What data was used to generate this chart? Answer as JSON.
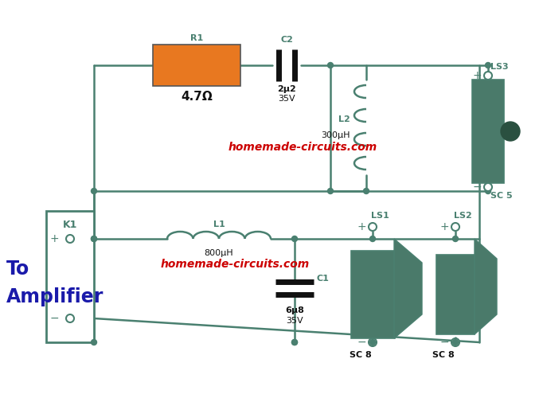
{
  "bg_color": "#ffffff",
  "line_color": "#4a8070",
  "line_width": 1.8,
  "text_color": "#4a8070",
  "red_color": "#cc0000",
  "resistor_color": "#e87820",
  "black_color": "#111111",
  "blue_color": "#1a1aaa",
  "label_font_size": 8.5,
  "small_font_size": 8,
  "watermark_font_size": 10,
  "to_amp_font_size": 17,
  "r1_label": "R1",
  "r1_value": "4.7Ω",
  "c2_label": "C2",
  "c2_value": "2μ2",
  "c2_volt": "35V",
  "l2_label": "L2",
  "l2_value": "300μH",
  "ls3_label": "LS3",
  "sc5_label": "SC 5",
  "k1_label": "K1",
  "l1_label": "L1",
  "l1_value": "800μH",
  "c1_label": "C1",
  "c1_value": "6μ8",
  "c1_volt": "35V",
  "ls1_label": "LS1",
  "ls2_label": "LS2",
  "sc8_label": "SC 8",
  "to_amp_line1": "To",
  "to_amp_line2": "Amplifier",
  "watermark": "homemade-circuits.com"
}
